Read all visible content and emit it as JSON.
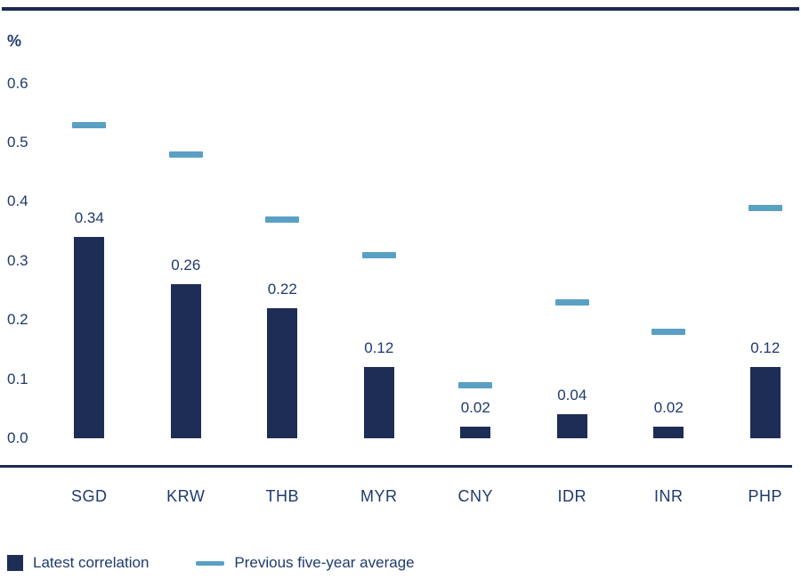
{
  "colors": {
    "navy": "#1d2d55",
    "rule_navy": "#1b2a52",
    "light_blue": "#5aa0c4",
    "text_blue": "#1f3a6d",
    "background": "#ffffff"
  },
  "chart_data": {
    "type": "bar",
    "categories": [
      "SGD",
      "KRW",
      "THB",
      "MYR",
      "CNY",
      "IDR",
      "INR",
      "PHP"
    ],
    "series": [
      {
        "name": "Latest correlation",
        "style": "bar",
        "color_key": "navy",
        "values": [
          0.34,
          0.26,
          0.22,
          0.12,
          0.02,
          0.04,
          0.02,
          0.12
        ],
        "data_labels": [
          "0.34",
          "0.26",
          "0.22",
          "0.12",
          "0.02",
          "0.04",
          "0.02",
          "0.12"
        ]
      },
      {
        "name": "Previous five-year average",
        "style": "dash",
        "color_key": "light_blue",
        "values": [
          0.53,
          0.48,
          0.37,
          0.31,
          0.09,
          0.23,
          0.18,
          0.39
        ]
      }
    ],
    "title": "",
    "xlabel": "",
    "ylabel": "%",
    "ylim": [
      0,
      0.6
    ],
    "yticks": [
      "0.6",
      "0.5",
      "0.4",
      "0.3",
      "0.2",
      "0.1",
      "0.0"
    ],
    "grid": false,
    "legend_position": "bottom"
  },
  "legend": {
    "items": [
      {
        "label": "Latest correlation"
      },
      {
        "label": "Previous five-year average"
      }
    ]
  }
}
